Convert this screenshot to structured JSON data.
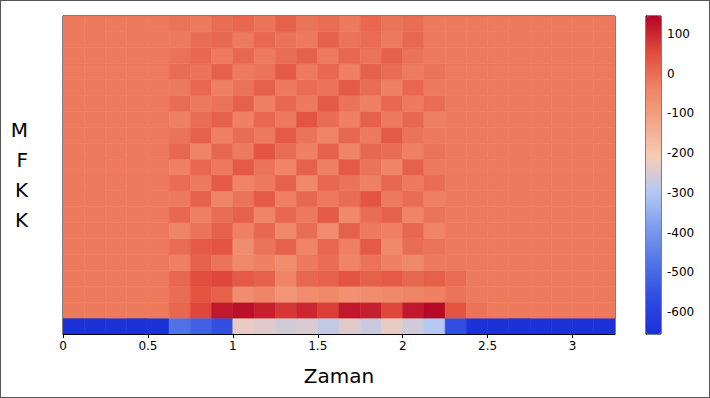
{
  "chart_data": {
    "type": "heatmap",
    "xlabel": "Zaman",
    "ylabel": "MFKK",
    "x_bins": [
      0,
      0.125,
      0.25,
      0.375,
      0.5,
      0.625,
      0.75,
      0.875,
      1,
      1.125,
      1.25,
      1.375,
      1.5,
      1.625,
      1.75,
      1.875,
      2,
      2.125,
      2.25,
      2.375,
      2.5,
      2.625,
      2.75,
      2.875,
      3,
      3.125,
      3.25
    ],
    "y_bins": [
      0,
      1,
      2,
      3,
      4,
      5,
      6,
      7,
      8,
      9,
      10,
      11,
      12,
      13,
      14,
      15,
      16,
      17,
      18,
      19,
      20
    ],
    "xlim": [
      0,
      3.25
    ],
    "xticks": [
      0,
      0.5,
      1,
      1.5,
      2,
      2.5,
      3
    ],
    "ylim": [
      0,
      20
    ],
    "tick_labels": "x",
    "cells": [
      [
        -650,
        -650,
        -650,
        -650,
        -650,
        -480,
        -520,
        -560,
        -230,
        -240,
        -260,
        -250,
        -280,
        -240,
        -270,
        -230,
        -260,
        -300,
        -560,
        -650,
        -650,
        -650,
        -650,
        -650,
        -650,
        -650
      ],
      [
        -20,
        -20,
        -20,
        -20,
        -20,
        10,
        60,
        120,
        130,
        110,
        80,
        100,
        70,
        120,
        110,
        60,
        120,
        140,
        40,
        -10,
        -20,
        -20,
        -20,
        -20,
        -20,
        -20
      ],
      [
        -20,
        -20,
        -20,
        -20,
        -20,
        0,
        40,
        20,
        -60,
        -40,
        -80,
        -60,
        -50,
        -70,
        -60,
        -50,
        -40,
        -30,
        -10,
        -20,
        -20,
        -20,
        -20,
        -20,
        -20,
        -20
      ],
      [
        -20,
        -20,
        -20,
        -20,
        -20,
        10,
        50,
        60,
        30,
        20,
        -40,
        10,
        20,
        40,
        20,
        30,
        10,
        20,
        0,
        -20,
        -20,
        -20,
        -20,
        -20,
        -20,
        -20
      ],
      [
        -20,
        -20,
        -20,
        -20,
        -20,
        -30,
        20,
        -10,
        -50,
        -30,
        -60,
        -20,
        0,
        -40,
        -10,
        -30,
        -50,
        -20,
        -20,
        -20,
        -20,
        -20,
        -20,
        -20,
        -20,
        -20
      ],
      [
        -20,
        -20,
        -20,
        -20,
        -20,
        0,
        30,
        40,
        -60,
        -10,
        20,
        -40,
        10,
        -30,
        30,
        -50,
        0,
        -10,
        -20,
        -20,
        -20,
        -20,
        -20,
        -20,
        -20,
        -20
      ],
      [
        -20,
        -20,
        -20,
        -20,
        -20,
        -40,
        -10,
        20,
        -30,
        10,
        -50,
        0,
        -60,
        20,
        -20,
        -30,
        10,
        -40,
        -20,
        -20,
        -20,
        -20,
        -20,
        -20,
        -20,
        -20
      ],
      [
        -20,
        -20,
        -20,
        -20,
        -20,
        10,
        -30,
        0,
        20,
        -40,
        10,
        -20,
        30,
        -50,
        0,
        20,
        -40,
        -10,
        -20,
        -20,
        -20,
        -20,
        -20,
        -20,
        -20,
        -20
      ],
      [
        -20,
        -20,
        -20,
        -20,
        -20,
        -20,
        20,
        -40,
        -10,
        30,
        -30,
        10,
        -20,
        0,
        40,
        -20,
        0,
        -30,
        -20,
        -20,
        -20,
        -20,
        -20,
        -20,
        -20,
        -20
      ],
      [
        -20,
        -20,
        -20,
        -20,
        -20,
        0,
        -20,
        30,
        -40,
        -20,
        20,
        -50,
        10,
        -10,
        -30,
        10,
        -20,
        0,
        -20,
        -20,
        -20,
        -20,
        -20,
        -20,
        -20,
        -20
      ],
      [
        -20,
        -20,
        -20,
        -20,
        -20,
        -30,
        10,
        -20,
        30,
        -10,
        -40,
        20,
        -30,
        30,
        -10,
        -40,
        20,
        -20,
        -20,
        -20,
        -20,
        -20,
        -20,
        -20,
        -20,
        -20
      ],
      [
        -20,
        -20,
        -20,
        -20,
        -20,
        10,
        -40,
        10,
        -20,
        40,
        0,
        -30,
        20,
        -40,
        10,
        0,
        -30,
        -10,
        -20,
        -20,
        -20,
        -20,
        -20,
        -20,
        -20,
        -20
      ],
      [
        -20,
        -20,
        -20,
        -20,
        -20,
        -10,
        20,
        -30,
        0,
        -20,
        30,
        -10,
        -40,
        10,
        -20,
        30,
        -10,
        -20,
        -20,
        -20,
        -20,
        -20,
        -20,
        -20,
        -20,
        -20
      ],
      [
        -20,
        -20,
        -20,
        -20,
        -20,
        -30,
        0,
        20,
        -30,
        10,
        -20,
        40,
        0,
        -30,
        20,
        -20,
        10,
        -30,
        -20,
        -20,
        -20,
        -20,
        -20,
        -20,
        -20,
        -20
      ],
      [
        -20,
        -20,
        -20,
        -20,
        -20,
        0,
        -20,
        -10,
        20,
        -30,
        10,
        -20,
        30,
        -10,
        -30,
        10,
        -20,
        0,
        -20,
        -20,
        -20,
        -20,
        -20,
        -20,
        -20,
        -20
      ],
      [
        -20,
        -20,
        -20,
        -20,
        -20,
        -20,
        10,
        -30,
        -10,
        20,
        -20,
        0,
        -10,
        30,
        0,
        -30,
        10,
        -20,
        -20,
        -20,
        -20,
        -20,
        -20,
        -20,
        -20,
        -20
      ],
      [
        -20,
        -20,
        -20,
        -20,
        -20,
        0,
        -10,
        20,
        -20,
        -10,
        30,
        -20,
        10,
        -30,
        20,
        0,
        -20,
        -10,
        -20,
        -20,
        -20,
        -20,
        -20,
        -20,
        -20,
        -20
      ],
      [
        -20,
        -20,
        -20,
        -20,
        -20,
        -10,
        10,
        -20,
        10,
        -20,
        0,
        20,
        -20,
        10,
        -10,
        20,
        -10,
        -20,
        -20,
        -20,
        -20,
        -20,
        -20,
        -20,
        -20,
        -20
      ],
      [
        -20,
        -20,
        -20,
        -20,
        -20,
        -20,
        0,
        10,
        -20,
        10,
        -10,
        -20,
        20,
        -10,
        0,
        -20,
        10,
        -20,
        -20,
        -20,
        -20,
        -20,
        -20,
        -20,
        -20,
        -20
      ],
      [
        -20,
        -20,
        -20,
        -20,
        -20,
        -10,
        -20,
        0,
        10,
        -10,
        20,
        -10,
        0,
        -20,
        10,
        -10,
        0,
        -20,
        -20,
        -20,
        -20,
        -20,
        -20,
        -20,
        -20,
        -20
      ]
    ],
    "colorbar": {
      "range": [
        -655,
        145
      ],
      "ticks": [
        100,
        0,
        -100,
        -200,
        -300,
        -400,
        -500,
        -600
      ]
    }
  }
}
